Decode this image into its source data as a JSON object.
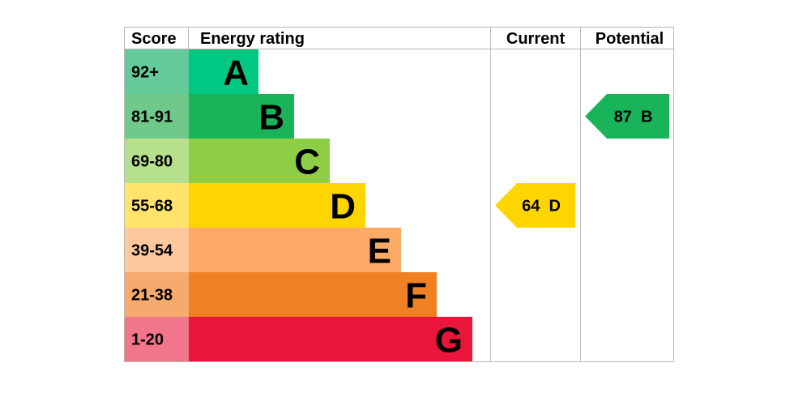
{
  "chart_data": {
    "type": "bar",
    "headers": {
      "score": "Score",
      "rating": "Energy rating",
      "current": "Current",
      "potential": "Potential"
    },
    "bands": [
      {
        "score": "92+",
        "letter": "A",
        "min": 92,
        "color": "#00c781",
        "score_bg": "#63cb9a"
      },
      {
        "score": "81-91",
        "letter": "B",
        "min": 81,
        "color": "#19b459",
        "score_bg": "#6fc98a"
      },
      {
        "score": "69-80",
        "letter": "C",
        "min": 69,
        "color": "#8dce46",
        "score_bg": "#b6e08b"
      },
      {
        "score": "55-68",
        "letter": "D",
        "min": 55,
        "color": "#ffd500",
        "score_bg": "#ffe36b"
      },
      {
        "score": "39-54",
        "letter": "E",
        "min": 39,
        "color": "#fcaa65",
        "score_bg": "#fdc89e"
      },
      {
        "score": "21-38",
        "letter": "F",
        "min": 21,
        "color": "#ef8023",
        "score_bg": "#f5aa6e"
      },
      {
        "score": "1-20",
        "letter": "G",
        "min": 1,
        "color": "#e9153b",
        "score_bg": "#f1758b"
      }
    ],
    "current": {
      "value": 64,
      "band": "D",
      "label": "64  D",
      "color": "#ffd500"
    },
    "potential": {
      "value": 87,
      "band": "B",
      "label": "87  B",
      "color": "#19b459"
    }
  }
}
